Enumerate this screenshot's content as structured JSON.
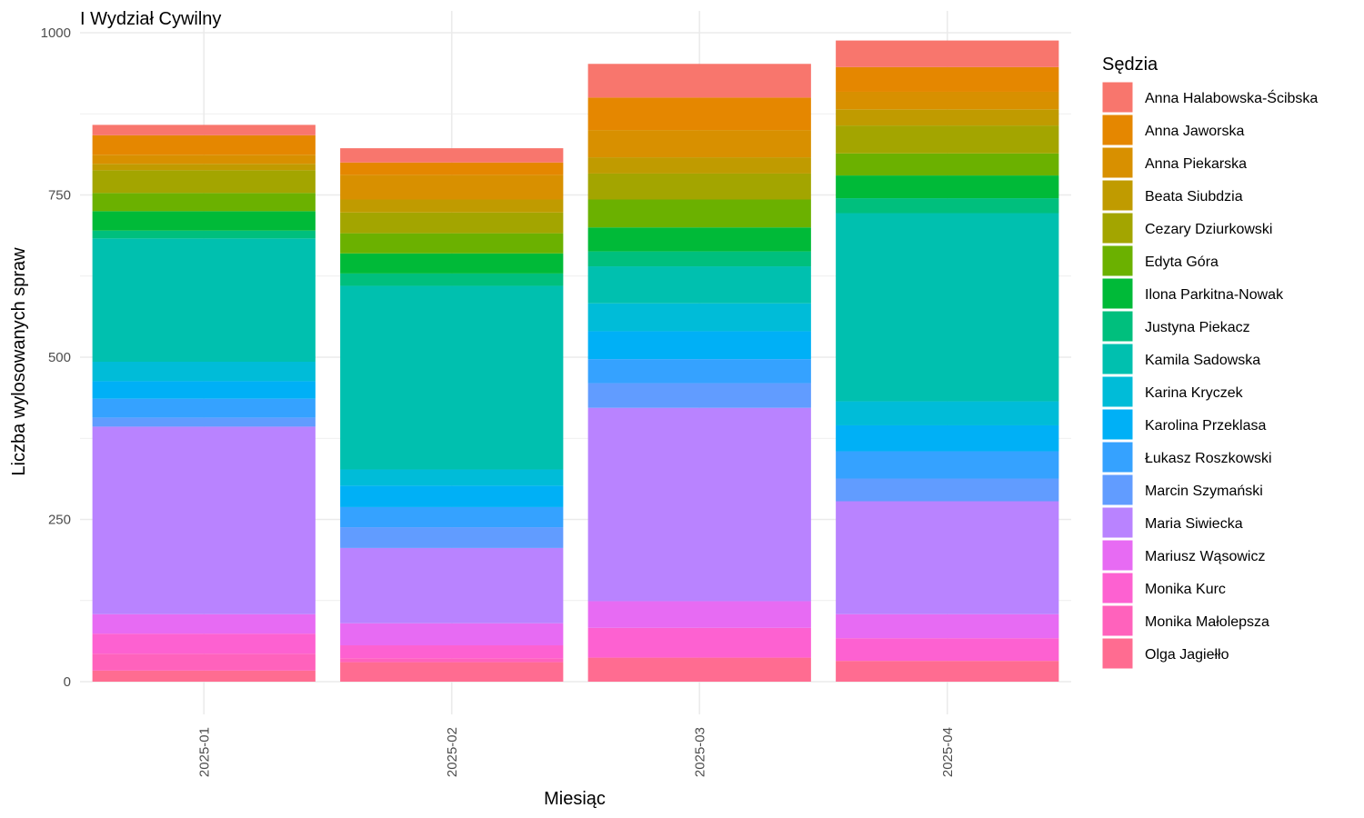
{
  "chart_data": {
    "type": "bar",
    "stacked": true,
    "title": "I Wydział Cywilny",
    "xlabel": "Miesiąc",
    "ylabel": "Liczba wylosowanych spraw",
    "ylim": [
      0,
      1000
    ],
    "yticks": [
      0,
      250,
      500,
      750,
      1000
    ],
    "grid": true,
    "legend": {
      "title": "Sędzia",
      "position": "right"
    },
    "categories": [
      "2025-01",
      "2025-02",
      "2025-03",
      "2025-04"
    ],
    "series": [
      {
        "name": "Anna Halabowska-Ścibska",
        "color": "#F8766D",
        "values": [
          16,
          22,
          52,
          41
        ]
      },
      {
        "name": "Anna Jaworska",
        "color": "#E58700",
        "values": [
          30,
          19,
          50,
          38
        ]
      },
      {
        "name": "Anna Piekarska",
        "color": "#D89000",
        "values": [
          14,
          38,
          42,
          27
        ]
      },
      {
        "name": "Beata Siubdzia",
        "color": "#C09B00",
        "values": [
          10,
          20,
          25,
          25
        ]
      },
      {
        "name": "Cezary Dziurkowski",
        "color": "#A3A500",
        "values": [
          35,
          32,
          40,
          43
        ]
      },
      {
        "name": "Edyta Góra",
        "color": "#6BB100",
        "values": [
          28,
          31,
          43,
          34
        ]
      },
      {
        "name": "Ilona Parkitna-Nowak",
        "color": "#00BA38",
        "values": [
          30,
          31,
          37,
          35
        ]
      },
      {
        "name": "Justyna Piekacz",
        "color": "#00BF7D",
        "values": [
          12,
          19,
          23,
          23
        ]
      },
      {
        "name": "Kamila Sadowska",
        "color": "#00C0AF",
        "values": [
          190,
          283,
          57,
          290
        ]
      },
      {
        "name": "Karina Kryczek",
        "color": "#00BCD8",
        "values": [
          30,
          25,
          43,
          37
        ]
      },
      {
        "name": "Karolina Przeklasa",
        "color": "#00B0F6",
        "values": [
          27,
          33,
          43,
          40
        ]
      },
      {
        "name": "Łukasz Roszkowski",
        "color": "#35A2FF",
        "values": [
          29,
          31,
          37,
          42
        ]
      },
      {
        "name": "Marcin Szymański",
        "color": "#619CFF",
        "values": [
          14,
          32,
          38,
          35
        ]
      },
      {
        "name": "Maria Siwiecka",
        "color": "#B983FF",
        "values": [
          289,
          116,
          298,
          174
        ]
      },
      {
        "name": "Mariusz Wąsowicz",
        "color": "#E76BF3",
        "values": [
          30,
          34,
          41,
          37
        ]
      },
      {
        "name": "Monika Kurc",
        "color": "#FD61D1",
        "values": [
          31,
          20,
          46,
          35
        ]
      },
      {
        "name": "Monika Małolepsza",
        "color": "#FF62BC",
        "values": [
          26,
          6,
          0,
          0
        ]
      },
      {
        "name": "Olga Jagiełło",
        "color": "#FF6C91",
        "values": [
          17,
          30,
          37,
          32
        ]
      }
    ]
  }
}
